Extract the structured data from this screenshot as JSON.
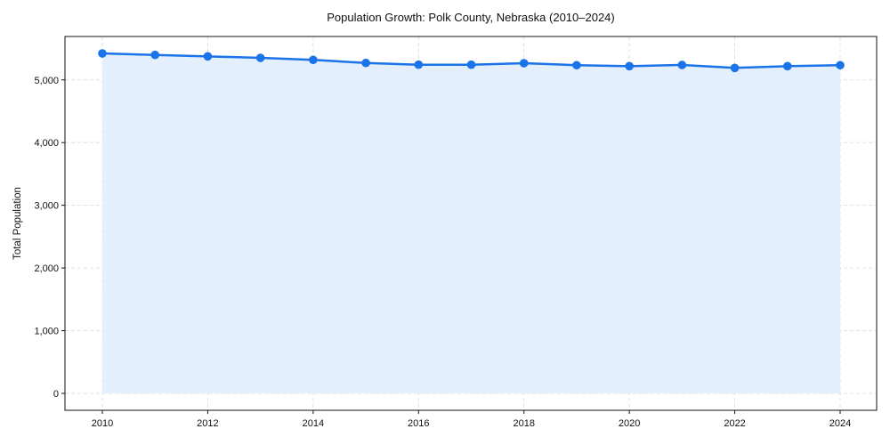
{
  "chart_data": {
    "type": "line",
    "title": "Population Growth: Polk County, Nebraska (2010–2024)",
    "xlabel": "",
    "ylabel": "Total Population",
    "x": [
      2010,
      2011,
      2012,
      2013,
      2014,
      2015,
      2016,
      2017,
      2018,
      2019,
      2020,
      2021,
      2022,
      2023,
      2024
    ],
    "series": [
      {
        "name": "Total Population",
        "values": [
          5422,
          5398,
          5375,
          5351,
          5319,
          5270,
          5242,
          5242,
          5266,
          5234,
          5219,
          5238,
          5191,
          5219,
          5234
        ],
        "color": "#1a73e8",
        "fill": "#e3eefd",
        "marker": "circle"
      }
    ],
    "xticks": [
      "2010",
      "2012",
      "2014",
      "2016",
      "2018",
      "2020",
      "2022",
      "2024"
    ],
    "yticks": [
      "0",
      "1,000",
      "2,000",
      "3,000",
      "4,000",
      "5,000"
    ],
    "ylim": [
      -270,
      5700
    ],
    "xlim": [
      2009.3,
      2024.7
    ],
    "grid": true,
    "legend": null
  }
}
